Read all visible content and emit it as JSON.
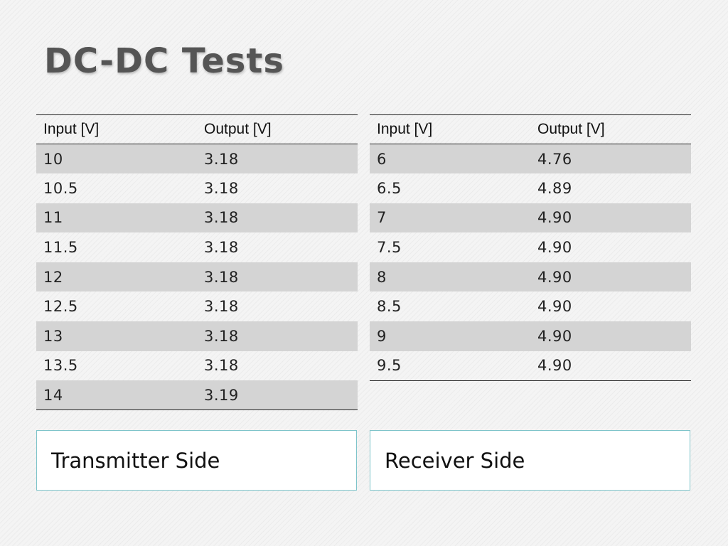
{
  "slide": {
    "title": "DC-DC Tests"
  },
  "tables": [
    {
      "headers": [
        "Input [V]",
        "Output [V]"
      ],
      "rows": [
        [
          "10",
          "3.18"
        ],
        [
          "10.5",
          "3.18"
        ],
        [
          "11",
          "3.18"
        ],
        [
          "11.5",
          "3.18"
        ],
        [
          "12",
          "3.18"
        ],
        [
          "12.5",
          "3.18"
        ],
        [
          "13",
          "3.18"
        ],
        [
          "13.5",
          "3.18"
        ],
        [
          "14",
          "3.19"
        ]
      ],
      "caption": "Transmitter Side"
    },
    {
      "headers": [
        "Input [V]",
        "Output [V]"
      ],
      "rows": [
        [
          "6",
          "4.76"
        ],
        [
          "6.5",
          "4.89"
        ],
        [
          "7",
          "4.90"
        ],
        [
          "7.5",
          "4.90"
        ],
        [
          "8",
          "4.90"
        ],
        [
          "8.5",
          "4.90"
        ],
        [
          "9",
          "4.90"
        ],
        [
          "9.5",
          "4.90"
        ]
      ],
      "caption": "Receiver Side"
    }
  ]
}
